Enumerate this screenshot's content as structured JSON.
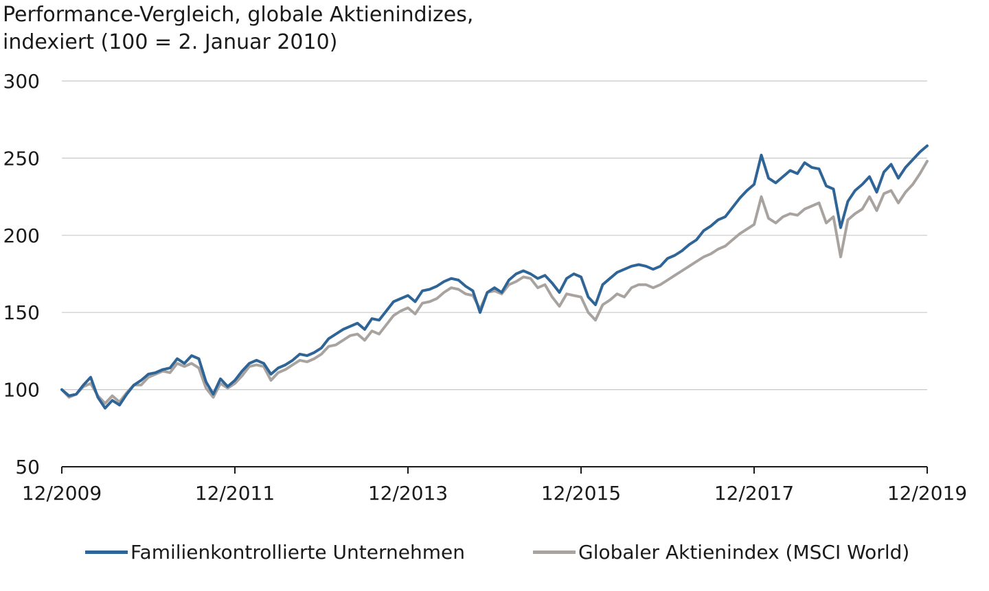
{
  "chart_data": {
    "type": "line",
    "title_lines": [
      "Performance-Vergleich, globale Aktienindizes,",
      "indexiert (100 = 2. Januar 2010)"
    ],
    "xlabel": "",
    "ylabel": "",
    "x_tick_labels": [
      "12/2009",
      "12/2011",
      "12/2013",
      "12/2015",
      "12/2017",
      "12/2019"
    ],
    "y_ticks": [
      50,
      100,
      150,
      200,
      250,
      300
    ],
    "ylim": [
      50,
      300
    ],
    "xlim": [
      "2009-12",
      "2019-12"
    ],
    "grid": "horizontal",
    "legend_position": "bottom",
    "series": [
      {
        "name": "Familienkontrollierte Unternehmen",
        "color": "#2e6496",
        "points": [
          [
            "2009-12",
            100
          ],
          [
            "2010-01",
            96
          ],
          [
            "2010-02",
            97
          ],
          [
            "2010-03",
            103
          ],
          [
            "2010-04",
            108
          ],
          [
            "2010-05",
            95
          ],
          [
            "2010-06",
            88
          ],
          [
            "2010-07",
            93
          ],
          [
            "2010-08",
            90
          ],
          [
            "2010-09",
            97
          ],
          [
            "2010-10",
            103
          ],
          [
            "2010-11",
            106
          ],
          [
            "2010-12",
            110
          ],
          [
            "2011-01",
            111
          ],
          [
            "2011-02",
            113
          ],
          [
            "2011-03",
            114
          ],
          [
            "2011-04",
            120
          ],
          [
            "2011-05",
            117
          ],
          [
            "2011-06",
            122
          ],
          [
            "2011-07",
            120
          ],
          [
            "2011-08",
            105
          ],
          [
            "2011-09",
            97
          ],
          [
            "2011-10",
            107
          ],
          [
            "2011-11",
            102
          ],
          [
            "2011-12",
            106
          ],
          [
            "2012-01",
            112
          ],
          [
            "2012-02",
            117
          ],
          [
            "2012-03",
            119
          ],
          [
            "2012-04",
            117
          ],
          [
            "2012-05",
            110
          ],
          [
            "2012-06",
            114
          ],
          [
            "2012-07",
            116
          ],
          [
            "2012-08",
            119
          ],
          [
            "2012-09",
            123
          ],
          [
            "2012-10",
            122
          ],
          [
            "2012-11",
            124
          ],
          [
            "2012-12",
            127
          ],
          [
            "2013-01",
            133
          ],
          [
            "2013-02",
            136
          ],
          [
            "2013-03",
            139
          ],
          [
            "2013-04",
            141
          ],
          [
            "2013-05",
            143
          ],
          [
            "2013-06",
            139
          ],
          [
            "2013-07",
            146
          ],
          [
            "2013-08",
            145
          ],
          [
            "2013-09",
            151
          ],
          [
            "2013-10",
            157
          ],
          [
            "2013-11",
            159
          ],
          [
            "2013-12",
            161
          ],
          [
            "2014-01",
            157
          ],
          [
            "2014-02",
            164
          ],
          [
            "2014-03",
            165
          ],
          [
            "2014-04",
            167
          ],
          [
            "2014-05",
            170
          ],
          [
            "2014-06",
            172
          ],
          [
            "2014-07",
            171
          ],
          [
            "2014-08",
            167
          ],
          [
            "2014-09",
            164
          ],
          [
            "2014-10",
            150
          ],
          [
            "2014-11",
            163
          ],
          [
            "2014-12",
            166
          ],
          [
            "2015-01",
            163
          ],
          [
            "2015-02",
            171
          ],
          [
            "2015-03",
            175
          ],
          [
            "2015-04",
            177
          ],
          [
            "2015-05",
            175
          ],
          [
            "2015-06",
            172
          ],
          [
            "2015-07",
            174
          ],
          [
            "2015-08",
            169
          ],
          [
            "2015-09",
            163
          ],
          [
            "2015-10",
            172
          ],
          [
            "2015-11",
            175
          ],
          [
            "2015-12",
            173
          ],
          [
            "2016-01",
            160
          ],
          [
            "2016-02",
            155
          ],
          [
            "2016-03",
            168
          ],
          [
            "2016-04",
            172
          ],
          [
            "2016-05",
            176
          ],
          [
            "2016-06",
            178
          ],
          [
            "2016-07",
            180
          ],
          [
            "2016-08",
            181
          ],
          [
            "2016-09",
            180
          ],
          [
            "2016-10",
            178
          ],
          [
            "2016-11",
            180
          ],
          [
            "2016-12",
            185
          ],
          [
            "2017-01",
            187
          ],
          [
            "2017-02",
            190
          ],
          [
            "2017-03",
            194
          ],
          [
            "2017-04",
            197
          ],
          [
            "2017-05",
            203
          ],
          [
            "2017-06",
            206
          ],
          [
            "2017-07",
            210
          ],
          [
            "2017-08",
            212
          ],
          [
            "2017-09",
            218
          ],
          [
            "2017-10",
            224
          ],
          [
            "2017-11",
            229
          ],
          [
            "2017-12",
            233
          ],
          [
            "2018-01",
            252
          ],
          [
            "2018-02",
            237
          ],
          [
            "2018-03",
            234
          ],
          [
            "2018-04",
            238
          ],
          [
            "2018-05",
            242
          ],
          [
            "2018-06",
            240
          ],
          [
            "2018-07",
            247
          ],
          [
            "2018-08",
            244
          ],
          [
            "2018-09",
            243
          ],
          [
            "2018-10",
            232
          ],
          [
            "2018-11",
            230
          ],
          [
            "2018-12",
            205
          ],
          [
            "2019-01",
            222
          ],
          [
            "2019-02",
            229
          ],
          [
            "2019-03",
            233
          ],
          [
            "2019-04",
            238
          ],
          [
            "2019-05",
            228
          ],
          [
            "2019-06",
            241
          ],
          [
            "2019-07",
            246
          ],
          [
            "2019-08",
            237
          ],
          [
            "2019-09",
            244
          ],
          [
            "2019-10",
            249
          ],
          [
            "2019-11",
            254
          ],
          [
            "2019-12",
            258
          ]
        ]
      },
      {
        "name": "Globaler Aktienindex (MSCI World)",
        "color": "#a9a3a0",
        "points": [
          [
            "2009-12",
            100
          ],
          [
            "2010-01",
            95
          ],
          [
            "2010-02",
            97
          ],
          [
            "2010-03",
            102
          ],
          [
            "2010-04",
            104
          ],
          [
            "2010-05",
            96
          ],
          [
            "2010-06",
            91
          ],
          [
            "2010-07",
            96
          ],
          [
            "2010-08",
            92
          ],
          [
            "2010-09",
            98
          ],
          [
            "2010-10",
            103
          ],
          [
            "2010-11",
            103
          ],
          [
            "2010-12",
            108
          ],
          [
            "2011-01",
            110
          ],
          [
            "2011-02",
            112
          ],
          [
            "2011-03",
            111
          ],
          [
            "2011-04",
            117
          ],
          [
            "2011-05",
            115
          ],
          [
            "2011-06",
            117
          ],
          [
            "2011-07",
            114
          ],
          [
            "2011-08",
            101
          ],
          [
            "2011-09",
            95
          ],
          [
            "2011-10",
            104
          ],
          [
            "2011-11",
            101
          ],
          [
            "2011-12",
            104
          ],
          [
            "2012-01",
            109
          ],
          [
            "2012-02",
            115
          ],
          [
            "2012-03",
            116
          ],
          [
            "2012-04",
            115
          ],
          [
            "2012-05",
            106
          ],
          [
            "2012-06",
            111
          ],
          [
            "2012-07",
            113
          ],
          [
            "2012-08",
            116
          ],
          [
            "2012-09",
            119
          ],
          [
            "2012-10",
            118
          ],
          [
            "2012-11",
            120
          ],
          [
            "2012-12",
            123
          ],
          [
            "2013-01",
            128
          ],
          [
            "2013-02",
            129
          ],
          [
            "2013-03",
            132
          ],
          [
            "2013-04",
            135
          ],
          [
            "2013-05",
            136
          ],
          [
            "2013-06",
            132
          ],
          [
            "2013-07",
            138
          ],
          [
            "2013-08",
            136
          ],
          [
            "2013-09",
            142
          ],
          [
            "2013-10",
            148
          ],
          [
            "2013-11",
            151
          ],
          [
            "2013-12",
            153
          ],
          [
            "2014-01",
            149
          ],
          [
            "2014-02",
            156
          ],
          [
            "2014-03",
            157
          ],
          [
            "2014-04",
            159
          ],
          [
            "2014-05",
            163
          ],
          [
            "2014-06",
            166
          ],
          [
            "2014-07",
            165
          ],
          [
            "2014-08",
            162
          ],
          [
            "2014-09",
            161
          ],
          [
            "2014-10",
            152
          ],
          [
            "2014-11",
            163
          ],
          [
            "2014-12",
            164
          ],
          [
            "2015-01",
            162
          ],
          [
            "2015-02",
            168
          ],
          [
            "2015-03",
            170
          ],
          [
            "2015-04",
            173
          ],
          [
            "2015-05",
            172
          ],
          [
            "2015-06",
            166
          ],
          [
            "2015-07",
            168
          ],
          [
            "2015-08",
            160
          ],
          [
            "2015-09",
            154
          ],
          [
            "2015-10",
            162
          ],
          [
            "2015-11",
            161
          ],
          [
            "2015-12",
            160
          ],
          [
            "2016-01",
            150
          ],
          [
            "2016-02",
            145
          ],
          [
            "2016-03",
            155
          ],
          [
            "2016-04",
            158
          ],
          [
            "2016-05",
            162
          ],
          [
            "2016-06",
            160
          ],
          [
            "2016-07",
            166
          ],
          [
            "2016-08",
            168
          ],
          [
            "2016-09",
            168
          ],
          [
            "2016-10",
            166
          ],
          [
            "2016-11",
            168
          ],
          [
            "2016-12",
            171
          ],
          [
            "2017-01",
            174
          ],
          [
            "2017-02",
            177
          ],
          [
            "2017-03",
            180
          ],
          [
            "2017-04",
            183
          ],
          [
            "2017-05",
            186
          ],
          [
            "2017-06",
            188
          ],
          [
            "2017-07",
            191
          ],
          [
            "2017-08",
            193
          ],
          [
            "2017-09",
            197
          ],
          [
            "2017-10",
            201
          ],
          [
            "2017-11",
            204
          ],
          [
            "2017-12",
            207
          ],
          [
            "2018-01",
            225
          ],
          [
            "2018-02",
            211
          ],
          [
            "2018-03",
            208
          ],
          [
            "2018-04",
            212
          ],
          [
            "2018-05",
            214
          ],
          [
            "2018-06",
            213
          ],
          [
            "2018-07",
            217
          ],
          [
            "2018-08",
            219
          ],
          [
            "2018-09",
            221
          ],
          [
            "2018-10",
            208
          ],
          [
            "2018-11",
            212
          ],
          [
            "2018-12",
            186
          ],
          [
            "2019-01",
            210
          ],
          [
            "2019-02",
            214
          ],
          [
            "2019-03",
            217
          ],
          [
            "2019-04",
            225
          ],
          [
            "2019-05",
            216
          ],
          [
            "2019-06",
            227
          ],
          [
            "2019-07",
            229
          ],
          [
            "2019-08",
            221
          ],
          [
            "2019-09",
            228
          ],
          [
            "2019-10",
            233
          ],
          [
            "2019-11",
            240
          ],
          [
            "2019-12",
            248
          ]
        ]
      }
    ]
  }
}
